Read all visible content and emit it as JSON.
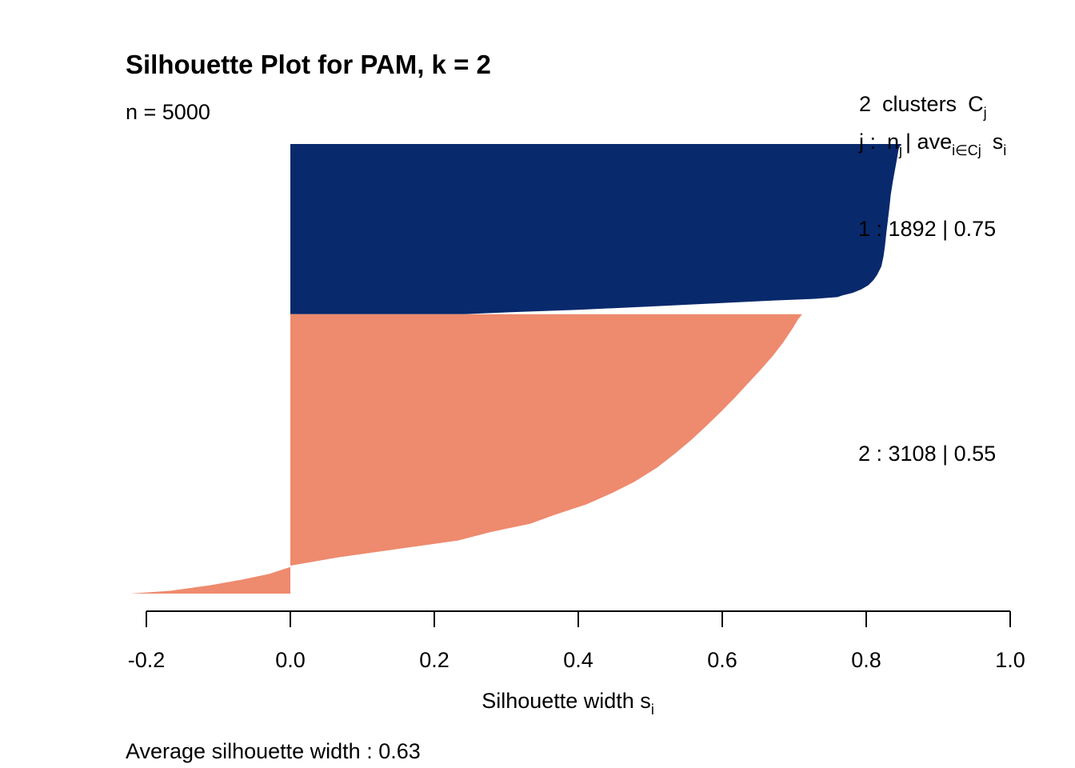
{
  "chart_data": {
    "type": "silhouette",
    "title": "Silhouette Plot for PAM, k = 2",
    "n_label": "n = 5000",
    "legend_header": {
      "count": "2",
      "word": "clusters",
      "C": "C",
      "C_sub": "j",
      "j_label": "j :",
      "n": "n",
      "n_sub": "j",
      "ave": "| ave",
      "ave_sub": "i∈Cj",
      "s": "s",
      "s_sub": "i"
    },
    "xlabel": "Silhouette width s",
    "xlabel_sub": "i",
    "footer": "Average silhouette width :  0.63",
    "xlim": [
      -0.2,
      1.0
    ],
    "xticks": [
      "-0.2",
      "0.0",
      "0.2",
      "0.4",
      "0.6",
      "0.8",
      "1.0"
    ],
    "clusters": [
      {
        "id": "1",
        "n": "1892",
        "avg": "0.75",
        "label": "1 :   1892  |  0.75",
        "color": "#08296C",
        "profile": [
          [
            0,
            0.848
          ],
          [
            0.03,
            0.845
          ],
          [
            0.08,
            0.843
          ],
          [
            0.15,
            0.84
          ],
          [
            0.22,
            0.837
          ],
          [
            0.3,
            0.834
          ],
          [
            0.38,
            0.832
          ],
          [
            0.45,
            0.83
          ],
          [
            0.52,
            0.828
          ],
          [
            0.6,
            0.826
          ],
          [
            0.66,
            0.824
          ],
          [
            0.72,
            0.821
          ],
          [
            0.77,
            0.815
          ],
          [
            0.8,
            0.81
          ],
          [
            0.83,
            0.803
          ],
          [
            0.855,
            0.793
          ],
          [
            0.875,
            0.781
          ],
          [
            0.89,
            0.767
          ],
          [
            0.9,
            0.76
          ],
          [
            0.91,
            0.729
          ],
          [
            0.92,
            0.672
          ],
          [
            0.935,
            0.6
          ],
          [
            0.955,
            0.5
          ],
          [
            0.975,
            0.4
          ],
          [
            0.99,
            0.3
          ],
          [
            1.0,
            0.24
          ]
        ]
      },
      {
        "id": "2",
        "n": "3108",
        "avg": "0.55",
        "label": "2 :   3108  |  0.55",
        "color": "#EE8A6E",
        "profile": [
          [
            0,
            0.711
          ],
          [
            0.02,
            0.705
          ],
          [
            0.05,
            0.698
          ],
          [
            0.1,
            0.685
          ],
          [
            0.15,
            0.67
          ],
          [
            0.2,
            0.653
          ],
          [
            0.25,
            0.635
          ],
          [
            0.3,
            0.617
          ],
          [
            0.35,
            0.598
          ],
          [
            0.4,
            0.578
          ],
          [
            0.45,
            0.557
          ],
          [
            0.5,
            0.534
          ],
          [
            0.55,
            0.509
          ],
          [
            0.6,
            0.478
          ],
          [
            0.64,
            0.447
          ],
          [
            0.68,
            0.412
          ],
          [
            0.72,
            0.365
          ],
          [
            0.75,
            0.333
          ],
          [
            0.78,
            0.278
          ],
          [
            0.81,
            0.233
          ],
          [
            0.84,
            0.15
          ],
          [
            0.87,
            0.067
          ],
          [
            0.9,
            0.0
          ],
          [
            0.905,
            -0.0
          ],
          [
            0.93,
            -0.03
          ],
          [
            0.95,
            -0.067
          ],
          [
            0.97,
            -0.111
          ],
          [
            0.99,
            -0.167
          ],
          [
            1.0,
            -0.222
          ]
        ]
      }
    ]
  }
}
